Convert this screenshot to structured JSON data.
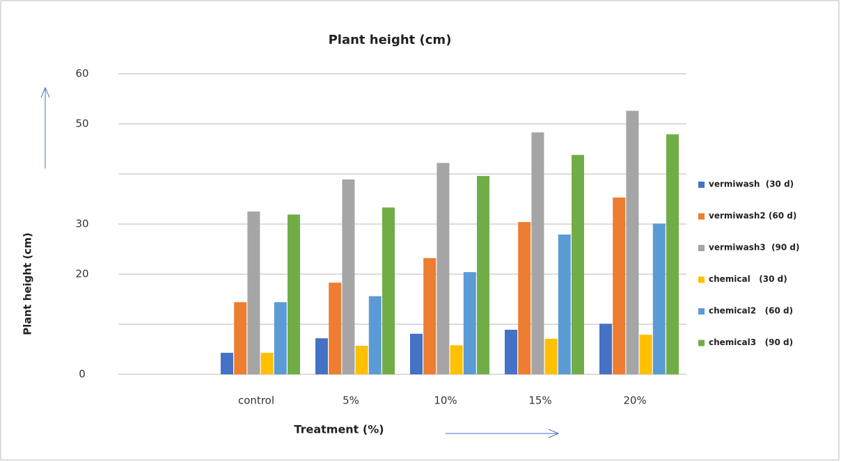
{
  "chart_data": {
    "type": "bar",
    "title": "Plant height (cm)",
    "x_label": "Treatment (%)",
    "y_label": "Plant height (cm)",
    "categories": [
      null,
      "control",
      "5%",
      "10%",
      "15%",
      "20%"
    ],
    "series": [
      {
        "name": "vermiwash  (30 d)",
        "color": "#4472c4",
        "values": [
          null,
          4.3,
          7.2,
          8.1,
          8.9,
          10.1
        ]
      },
      {
        "name": "vermiwash2 (60 d)",
        "color": "#ed7d31",
        "values": [
          null,
          14.4,
          18.3,
          23.2,
          30.4,
          35.3
        ]
      },
      {
        "name": "vermiwash3  (90 d)",
        "color": "#a5a5a5",
        "values": [
          null,
          32.5,
          38.9,
          42.2,
          48.3,
          52.6
        ]
      },
      {
        "name": "chemical   (30 d)",
        "color": "#ffc000",
        "values": [
          null,
          4.3,
          5.7,
          5.8,
          7.1,
          7.9
        ]
      },
      {
        "name": "chemical2   (60 d)",
        "color": "#5b9bd5",
        "values": [
          null,
          14.4,
          15.6,
          20.4,
          27.9,
          30.1
        ]
      },
      {
        "name": "chemical3   (90 d)",
        "color": "#70ad47",
        "values": [
          null,
          31.9,
          33.3,
          39.6,
          43.8,
          47.9
        ]
      }
    ],
    "ylim": [
      0,
      60
    ],
    "yticks": [
      0,
      20,
      30,
      50,
      60
    ],
    "grid_lines": [
      0,
      10,
      20,
      30,
      40,
      50,
      60
    ],
    "grid": true,
    "legend": "right"
  }
}
